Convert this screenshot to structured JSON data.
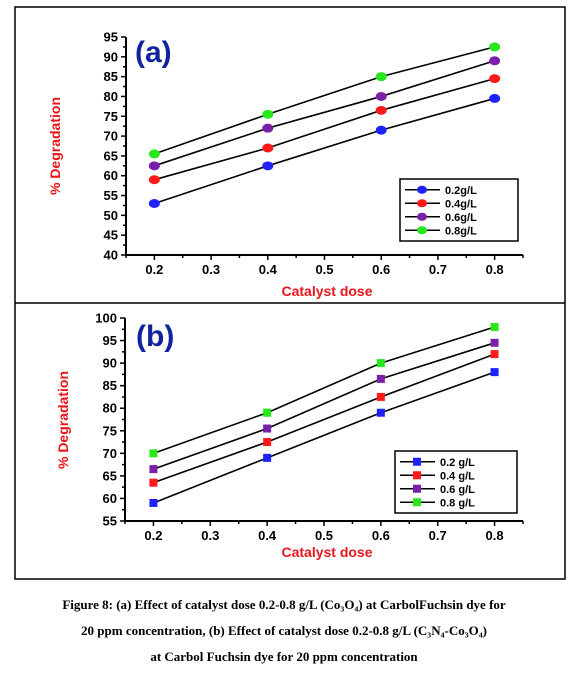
{
  "colors": {
    "series": [
      "#1e22ff",
      "#ff1a1a",
      "#7a1fa8",
      "#27e81b"
    ],
    "tag": "#12239e",
    "axis_title": "#e8151b"
  },
  "chart_data": [
    {
      "type": "line",
      "panel_label": "(a)",
      "marker": "circle",
      "xlabel": "Catalyst dose",
      "ylabel": "% Degradation",
      "xlim": [
        0.15,
        0.85
      ],
      "ylim": [
        40,
        95
      ],
      "x_ticks": [
        "0.2",
        "0.3",
        "0.4",
        "0.5",
        "0.6",
        "0.7",
        "0.8"
      ],
      "y_ticks": [
        "40",
        "45",
        "50",
        "55",
        "60",
        "65",
        "70",
        "75",
        "80",
        "85",
        "90",
        "95"
      ],
      "x": [
        0.2,
        0.4,
        0.6,
        0.8
      ],
      "legend_position": "right",
      "series": [
        {
          "name": "0.2g/L",
          "values": [
            53,
            62.5,
            71.5,
            79.5
          ]
        },
        {
          "name": "0.4g/L",
          "values": [
            59,
            67,
            76.5,
            84.5
          ]
        },
        {
          "name": "0.6g/L",
          "values": [
            62.5,
            72,
            80,
            89
          ]
        },
        {
          "name": "0.8g/L",
          "values": [
            65.5,
            75.5,
            85,
            92.5
          ]
        }
      ]
    },
    {
      "type": "line",
      "panel_label": "(b)",
      "marker": "square",
      "xlabel": "Catalyst dose",
      "ylabel": "% Degradation",
      "xlim": [
        0.15,
        0.85
      ],
      "ylim": [
        55,
        100
      ],
      "x_ticks": [
        "0.2",
        "0.3",
        "0.4",
        "0.5",
        "0.6",
        "0.7",
        "0.8"
      ],
      "y_ticks": [
        "55",
        "60",
        "65",
        "70",
        "75",
        "80",
        "85",
        "90",
        "95",
        "100"
      ],
      "x": [
        0.2,
        0.4,
        0.6,
        0.8
      ],
      "legend_position": "right",
      "series": [
        {
          "name": "0.2 g/L",
          "values": [
            59,
            69,
            79,
            88
          ]
        },
        {
          "name": "0.4 g/L",
          "values": [
            63.5,
            72.5,
            82.5,
            92
          ]
        },
        {
          "name": "0.6 g/L",
          "values": [
            66.5,
            75.5,
            86.5,
            94.5
          ]
        },
        {
          "name": "0.8 g/L",
          "values": [
            70,
            79,
            90,
            98
          ]
        }
      ]
    }
  ],
  "caption": {
    "line1": "Figure 8: (a) Effect of catalyst dose 0.2-0.8 g/L (Co₃O₄) at CarbolFuchsin dye for",
    "line2": "20 ppm concentration, (b) Effect of catalyst dose 0.2-0.8 g/L (C₃N₄-Co₃O₄)",
    "line3": "at Carbol Fuchsin dye for 20 ppm concentration"
  }
}
